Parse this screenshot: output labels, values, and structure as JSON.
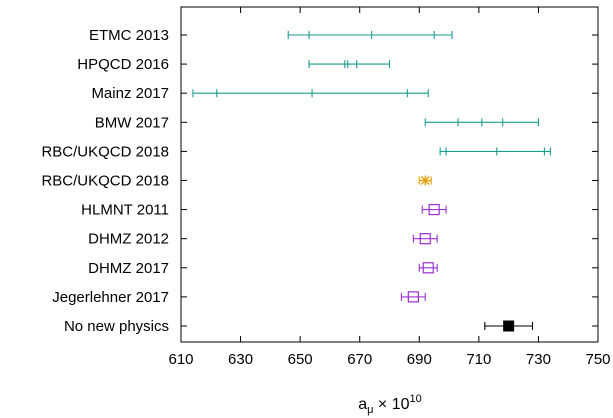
{
  "chart_data": {
    "type": "errorbar",
    "xlabel": "a",
    "xlabel_sub": "μ",
    "xlabel_rest": " × 10",
    "xlabel_sup": "10",
    "xlim": [
      610,
      750
    ],
    "xticks": [
      610,
      630,
      650,
      670,
      690,
      710,
      730,
      750
    ],
    "grid": false,
    "legend": "none",
    "entries": [
      {
        "label": "ETMC 2013",
        "value": 674,
        "outer": [
          646,
          701
        ],
        "inner": [
          653,
          695
        ],
        "marker": "none",
        "color": "#1a9e8f"
      },
      {
        "label": "HPQCD 2016",
        "value": 666,
        "outer": [
          653,
          680
        ],
        "inner": [
          665,
          669
        ],
        "marker": "none",
        "color": "#1a9e8f"
      },
      {
        "label": "Mainz 2017",
        "value": 654,
        "outer": [
          614,
          693
        ],
        "inner": [
          622,
          686
        ],
        "marker": "none",
        "color": "#1a9e8f"
      },
      {
        "label": "BMW 2017",
        "value": 711,
        "outer": [
          692,
          730
        ],
        "inner": [
          703,
          718
        ],
        "marker": "none",
        "color": "#1a9e8f"
      },
      {
        "label": "RBC/UKQCD 2018",
        "value": 716,
        "outer": [
          697,
          734
        ],
        "inner": [
          699,
          732
        ],
        "marker": "none",
        "color": "#1a9e8f"
      },
      {
        "label": "RBC/UKQCD 2018",
        "value": 692,
        "outer": [
          690,
          694
        ],
        "inner": [],
        "marker": "star",
        "color": "#e69f00"
      },
      {
        "label": "HLMNT 2011",
        "value": 695,
        "outer": [
          691,
          699
        ],
        "inner": [],
        "marker": "open-square",
        "color": "#9b30d0"
      },
      {
        "label": "DHMZ 2012",
        "value": 692,
        "outer": [
          688,
          696
        ],
        "inner": [],
        "marker": "open-square",
        "color": "#9b30d0"
      },
      {
        "label": "DHMZ 2017",
        "value": 693,
        "outer": [
          690,
          696
        ],
        "inner": [],
        "marker": "open-square",
        "color": "#9b30d0"
      },
      {
        "label": "Jegerlehner 2017",
        "value": 688,
        "outer": [
          684,
          692
        ],
        "inner": [],
        "marker": "open-square",
        "color": "#9b30d0"
      },
      {
        "label": "No new physics",
        "value": 720,
        "outer": [
          712,
          728
        ],
        "inner": [],
        "marker": "filled-square",
        "color": "#000000"
      }
    ]
  }
}
